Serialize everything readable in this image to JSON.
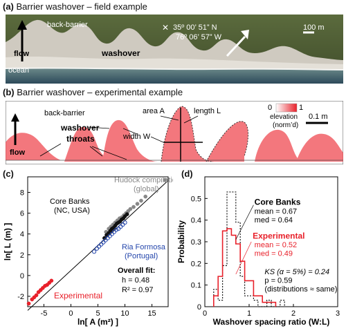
{
  "panel_a": {
    "letter": "(a)",
    "title": "Barrier washover – field example",
    "labels": {
      "back_barrier": "back-barrier",
      "flow": "flow",
      "washover": "washover",
      "ocean": "ocean",
      "coord_n": "35º 00’ 51” N",
      "coord_w": "76º 06’ 57” W",
      "scale": "100 m"
    }
  },
  "panel_b": {
    "letter": "(b)",
    "title": "Barrier washover – experimental example",
    "labels": {
      "back_barrier": "back-barrier",
      "flow": "flow",
      "washover": "washover",
      "throats": "throats",
      "area": "area A",
      "length": "length L",
      "width": "width W",
      "elev_min": "0",
      "elev_max": "1",
      "elev_label_1": "elevation",
      "elev_label_2": "(norm’d)",
      "scale": "0.1 m"
    }
  },
  "chart_data": [
    {
      "type": "scatter",
      "panel_letter": "(c)",
      "xlabel": "ln[ A (m²) ]",
      "ylabel": "ln[ L (m) ]",
      "xlim": [
        -8,
        18
      ],
      "ylim": [
        -3,
        9.5
      ],
      "xticks": [
        -5,
        0,
        5,
        10,
        15
      ],
      "yticks": [
        -2,
        0,
        2,
        4,
        6,
        8
      ],
      "fit_line": {
        "x": [
          -8,
          18
        ],
        "y": [
          -3.36,
          9.14
        ]
      },
      "series": [
        {
          "name": "Hudock compilation (global)",
          "color": "#888888",
          "marker": "filled-circle",
          "x": [
            6.5,
            7.0,
            7.4,
            7.8,
            8.2,
            8.6,
            9.0,
            9.4,
            9.8,
            10.2,
            10.6,
            11.0,
            11.6,
            12.3,
            13.0,
            13.8,
            17.4
          ],
          "y": [
            4.2,
            4.5,
            4.7,
            4.9,
            5.1,
            5.3,
            5.5,
            5.6,
            5.8,
            6.0,
            6.2,
            6.4,
            6.6,
            6.9,
            7.2,
            7.6,
            9.2
          ]
        },
        {
          "name": "Core Banks (NC, USA)",
          "color": "#111111",
          "marker": "filled-circle",
          "x": [
            6.2,
            6.6,
            7.0,
            7.3,
            7.6,
            7.9,
            8.2,
            8.5,
            8.8,
            9.1,
            9.4,
            9.7,
            10.0,
            10.4
          ],
          "y": [
            3.6,
            3.9,
            4.1,
            4.3,
            4.5,
            4.6,
            4.8,
            5.0,
            5.1,
            5.2,
            5.4,
            5.5,
            5.7,
            5.9
          ]
        },
        {
          "name": "Ria Formosa (Portugal)",
          "color": "#2244aa",
          "marker": "open-circle",
          "x": [
            4.3,
            4.8,
            5.2,
            5.6,
            6.0,
            6.4,
            6.8,
            7.2,
            7.6,
            8.0,
            8.4,
            8.8,
            9.2,
            9.6,
            10.0
          ],
          "y": [
            2.3,
            2.6,
            2.8,
            3.0,
            3.2,
            3.4,
            3.6,
            3.8,
            4.0,
            4.2,
            4.4,
            4.5,
            4.7,
            4.9,
            5.1
          ]
        },
        {
          "name": "Experimental",
          "color": "#e8202a",
          "marker": "filled-circle",
          "x": [
            -7.8,
            -7.2,
            -6.8,
            -6.4,
            -6.0,
            -5.6,
            -5.2,
            -4.8,
            -4.4,
            -4.0,
            -3.6
          ],
          "y": [
            -2.7,
            -2.3,
            -2.1,
            -1.9,
            -1.6,
            -1.4,
            -1.2,
            -1.0,
            -0.9,
            -0.7,
            -0.5
          ]
        }
      ],
      "annotations": {
        "overall_fit_title": "Overall fit:",
        "h": "h = 0.48",
        "r2": "R² = 0.97",
        "hudock_1": "Hudock compilation",
        "hudock_2": "(global)",
        "core_1": "Core Banks",
        "core_2": "(NC, USA)",
        "ria_1": "Ria Formosa",
        "ria_2": "(Portugal)",
        "experimental": "Experimental"
      }
    },
    {
      "type": "histogram",
      "panel_letter": "(d)",
      "xlabel": "Washover spacing ratio (W:L)",
      "ylabel": "Probability",
      "xlim": [
        0,
        3
      ],
      "ylim": [
        0,
        0.6
      ],
      "xticks": [
        0,
        1,
        2,
        3
      ],
      "yticks": [
        0,
        0.1,
        0.2,
        0.3,
        0.4,
        0.5
      ],
      "series": [
        {
          "name": "Core Banks",
          "color": "#111111",
          "style": "dotted",
          "bin_edges": [
            0.2,
            0.3,
            0.4,
            0.5,
            0.6,
            0.7,
            0.8,
            0.9,
            1.0,
            1.1,
            1.2,
            1.3,
            1.4,
            1.5,
            1.6,
            1.7,
            1.8
          ],
          "values": [
            0.08,
            0.03,
            0.19,
            0.53,
            0.53,
            0.39,
            0.14,
            0.05,
            0.05,
            0.03,
            0.0,
            0.0,
            0.03,
            0.0,
            0.0,
            0.03
          ]
        },
        {
          "name": "Experimental",
          "color": "#e8202a",
          "style": "solid",
          "bin_edges": [
            0.2,
            0.3,
            0.4,
            0.5,
            0.6,
            0.7,
            0.8,
            0.9,
            1.0,
            1.1,
            1.2,
            1.3,
            1.4,
            1.5,
            1.6
          ],
          "values": [
            0.05,
            0.14,
            0.35,
            0.36,
            0.33,
            0.29,
            0.21,
            0.12,
            0.12,
            0.05,
            0.05,
            0.02,
            0.02,
            0.02
          ]
        }
      ],
      "annotations": {
        "core_title": "Core Banks",
        "core_mean": "mean = 0.67",
        "core_med": "med = 0.64",
        "exp_title": "Experimental",
        "exp_mean": "mean = 0.52",
        "exp_med": "med = 0.49",
        "ks": "KS (α = 5%) = 0.24",
        "p": "p = 0.59",
        "same": "(distributions ≈ same)"
      }
    }
  ]
}
